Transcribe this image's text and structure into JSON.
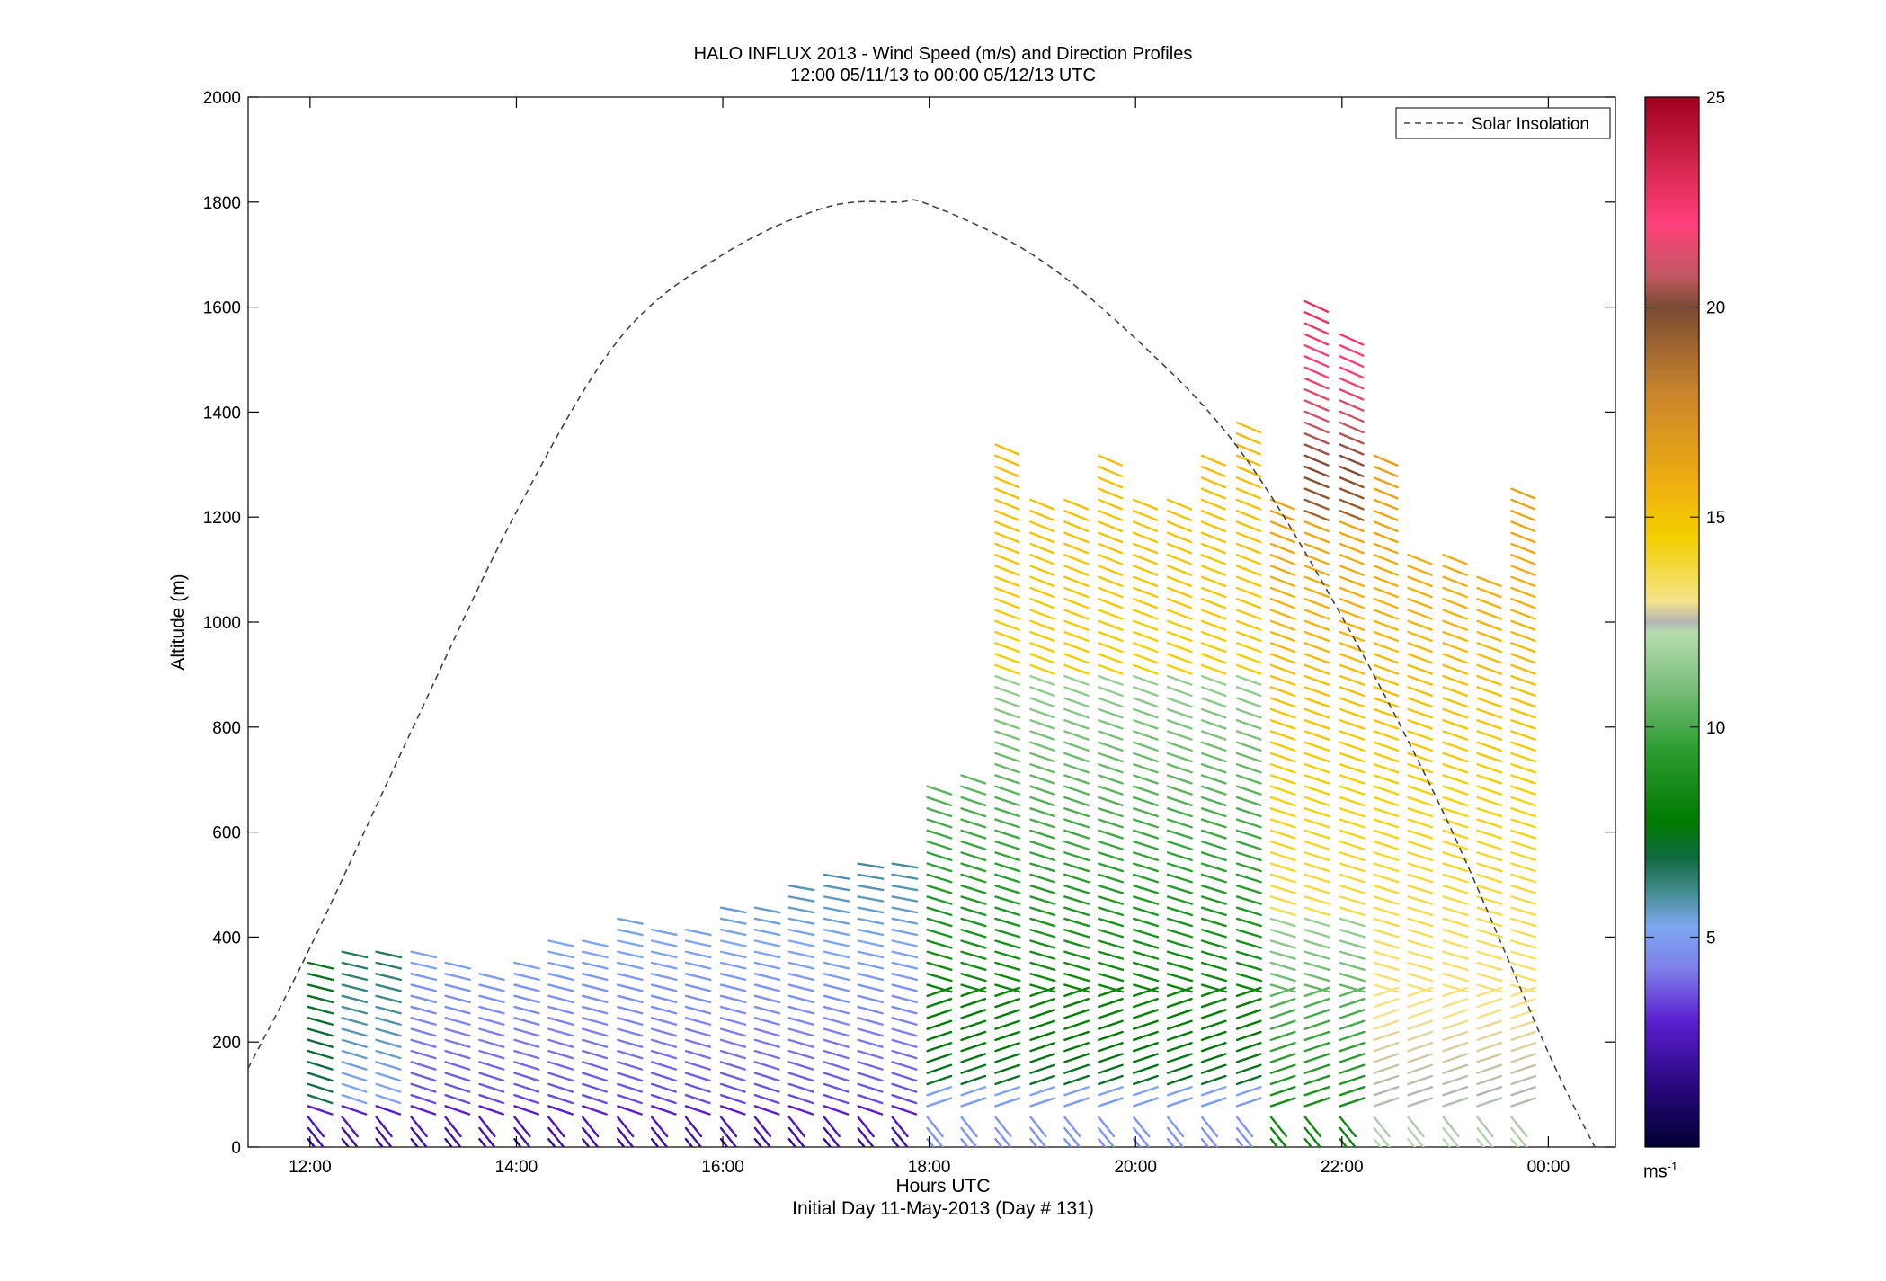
{
  "title": "HALO INFLUX 2013 - Wind Speed (m/s) and Direction Profiles",
  "subtitle": "12:00 05/11/13 to 00:00 05/12/13  UTC",
  "footer": "Initial Day 11-May-2013 (Day # 131)",
  "colorbar": {
    "unit_base": "ms",
    "unit_exp": "-1",
    "min": 0,
    "max": 25,
    "tick_values": [
      5,
      10,
      15,
      20,
      25
    ],
    "tick_labels": [
      "5",
      "10",
      "15",
      "20",
      "25"
    ]
  },
  "chart_data": {
    "type": "wind-barb-profile",
    "title": "HALO INFLUX 2013 - Wind Speed (m/s) and Direction Profiles",
    "subtitle": "12:00 05/11/13 to 00:00 05/12/13  UTC",
    "xlabel": "Hours UTC",
    "ylabel": "Altitude (m)",
    "xlim_hours": [
      11.4,
      24.65
    ],
    "ylim": [
      0,
      2000
    ],
    "x_ticks": [
      12,
      14,
      16,
      18,
      20,
      22,
      24
    ],
    "x_tick_labels": [
      "12:00",
      "14:00",
      "16:00",
      "18:00",
      "20:00",
      "22:00",
      "00:00"
    ],
    "y_ticks": [
      0,
      200,
      400,
      600,
      800,
      1000,
      1200,
      1400,
      1600,
      1800,
      2000
    ],
    "y_tick_labels": [
      "0",
      "200",
      "400",
      "600",
      "800",
      "1000",
      "1200",
      "1400",
      "1600",
      "1800",
      "2000"
    ],
    "legend": {
      "entries": [
        "Solar Insolation"
      ],
      "position": "top-right",
      "style": "dashed"
    },
    "solar_insolation": {
      "x_hours": [
        11.4,
        12.0,
        13.0,
        14.0,
        15.0,
        16.0,
        17.0,
        17.7,
        18.0,
        19.0,
        20.0,
        21.0,
        22.0,
        23.0,
        24.0,
        24.45
      ],
      "y": [
        150,
        380,
        800,
        1210,
        1540,
        1700,
        1790,
        1800,
        1795,
        1700,
        1540,
        1330,
        1010,
        630,
        180,
        0
      ]
    },
    "wind_speed_color_range_ms": [
      0,
      25
    ],
    "profiles_note": "Each column is one wind profile; every barb shows wind direction and its color gives speed (m/s).",
    "profile_top_altitude_m": [
      [
        12.0,
        370
      ],
      [
        12.33,
        390
      ],
      [
        12.66,
        390
      ],
      [
        13.0,
        380
      ],
      [
        13.33,
        360
      ],
      [
        13.66,
        350
      ],
      [
        14.0,
        370
      ],
      [
        14.33,
        405
      ],
      [
        14.66,
        405
      ],
      [
        15.0,
        440
      ],
      [
        15.33,
        430
      ],
      [
        15.66,
        420
      ],
      [
        16.0,
        465
      ],
      [
        16.33,
        470
      ],
      [
        16.66,
        500
      ],
      [
        17.0,
        520
      ],
      [
        17.33,
        550
      ],
      [
        17.66,
        550
      ],
      [
        18.0,
        690
      ],
      [
        18.33,
        720
      ],
      [
        18.66,
        1340
      ],
      [
        19.0,
        1250
      ],
      [
        19.33,
        1250
      ],
      [
        19.66,
        1320
      ],
      [
        20.0,
        1250
      ],
      [
        20.33,
        1250
      ],
      [
        20.66,
        1320
      ],
      [
        21.0,
        1400
      ],
      [
        21.33,
        1250
      ],
      [
        21.66,
        1620
      ],
      [
        22.0,
        1560
      ],
      [
        22.33,
        1320
      ],
      [
        22.66,
        1140
      ],
      [
        23.0,
        1140
      ],
      [
        23.33,
        1090
      ],
      [
        23.66,
        1260
      ]
    ],
    "speed_color_regimes": [
      {
        "altitude_band_m": [
          0,
          300
        ],
        "hours": [
          12,
          18
        ],
        "speed_ms_approx": [
          2,
          5
        ]
      },
      {
        "altitude_band_m": [
          0,
          800
        ],
        "hours": [
          18,
          22
        ],
        "speed_ms_approx": [
          6,
          11
        ]
      },
      {
        "altitude_band_m": [
          500,
          1300
        ],
        "hours": [
          21.5,
          24
        ],
        "speed_ms_approx": [
          13,
          17
        ]
      },
      {
        "altitude_band_m": [
          1200,
          1620
        ],
        "hours": [
          21.5,
          22
        ],
        "speed_ms_approx": [
          19,
          23
        ]
      }
    ]
  }
}
